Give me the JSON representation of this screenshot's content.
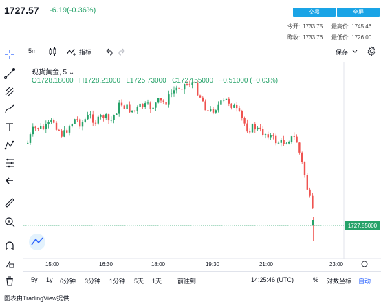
{
  "header": {
    "price": "1727.57",
    "change": "-6.19(-0.36%)",
    "trade_button": "交易",
    "fullscreen_button": "全屏",
    "stats": [
      {
        "label": "今开:",
        "value": "1733.75"
      },
      {
        "label": "最高价:",
        "value": "1745.46"
      },
      {
        "label": "昨收:",
        "value": "1733.76"
      },
      {
        "label": "最低价:",
        "value": "1726.00"
      }
    ]
  },
  "toolbar": {
    "interval": "5m",
    "indicators": "指标",
    "save": "保存"
  },
  "legend": {
    "symbol": "现货黄金, 5",
    "ohlc": "O1728.18000   H1728.21000   L1725.73000   C1727.55000   −0.51000 (−0.03%)"
  },
  "chart_data": {
    "type": "candlestick",
    "last_price_label": "1727.55000",
    "x_ticks": [
      "15:00",
      "16:30",
      "18:00",
      "19:30",
      "21:00",
      "23:00"
    ],
    "colors": {
      "up": "#26a269",
      "down": "#ef5350"
    }
  },
  "bottom_bar": {
    "ranges": [
      "5y",
      "1y",
      "6分钟",
      "3分钟",
      "1分钟",
      "5天",
      "1天"
    ],
    "goto": "前往到...",
    "time": "14:25:46 (UTC)",
    "percent": "%",
    "log": "对数坐标",
    "auto": "自动"
  },
  "footer": "图表由TradingView提供"
}
